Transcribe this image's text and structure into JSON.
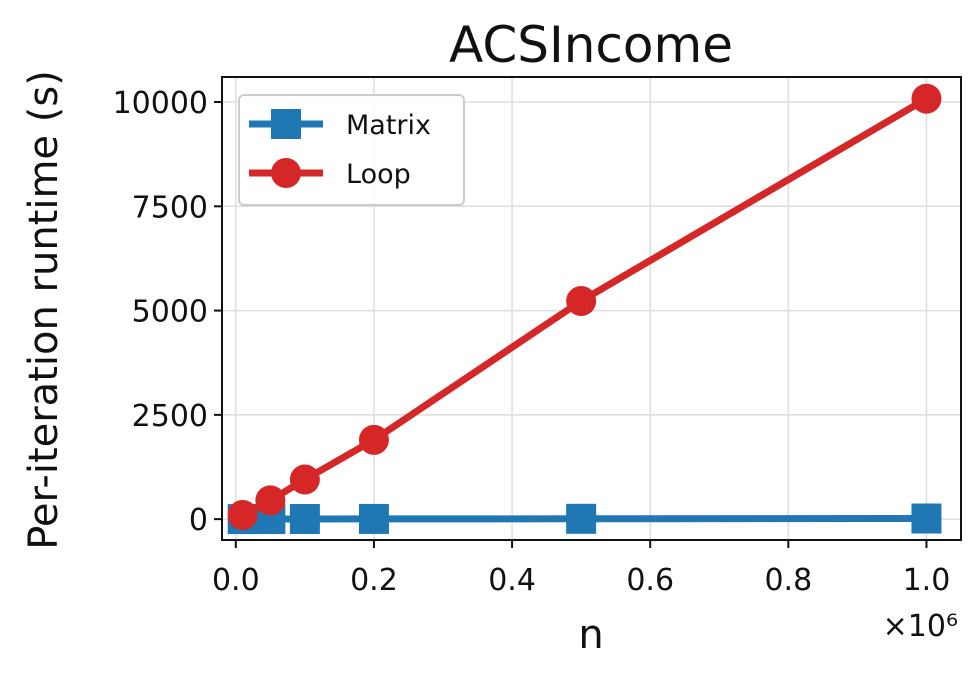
{
  "chart_data": {
    "type": "line",
    "title": "ACSIncome",
    "xlabel": "n",
    "ylabel": "Per-iteration runtime (s)",
    "x_offset_label": "×10⁶",
    "xlim": [
      -0.02,
      1.05
    ],
    "ylim": [
      -500,
      10600
    ],
    "xticks": [
      0.0,
      0.2,
      0.4,
      0.6,
      0.8,
      1.0
    ],
    "xtick_labels": [
      "0.0",
      "0.2",
      "0.4",
      "0.6",
      "0.8",
      "1.0"
    ],
    "yticks": [
      0,
      2500,
      5000,
      7500,
      10000
    ],
    "ytick_labels": [
      "0",
      "2500",
      "5000",
      "7500",
      "10000"
    ],
    "grid": true,
    "legend_position": "top-left",
    "series": [
      {
        "name": "Matrix",
        "color": "#1f77b4",
        "marker": "square",
        "x": [
          0.01,
          0.05,
          0.1,
          0.2,
          0.5,
          1.0
        ],
        "y": [
          1,
          2,
          3,
          5,
          8,
          15
        ]
      },
      {
        "name": "Loop",
        "color": "#d62728",
        "marker": "circle",
        "x": [
          0.01,
          0.05,
          0.1,
          0.2,
          0.5,
          1.0
        ],
        "y": [
          100,
          450,
          950,
          1900,
          5230,
          10080
        ]
      }
    ]
  }
}
